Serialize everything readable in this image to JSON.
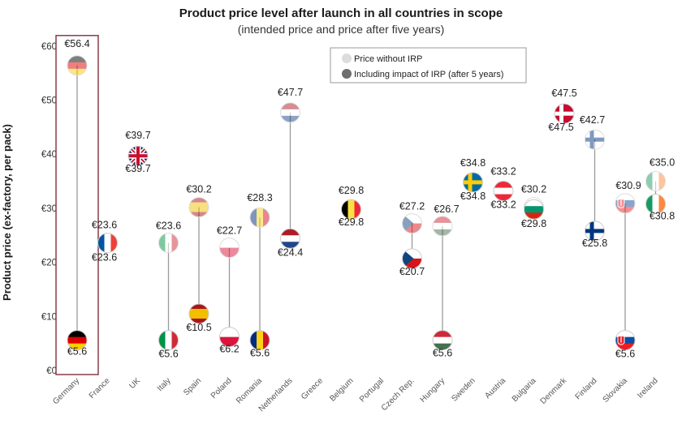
{
  "chart_data": {
    "type": "scatter",
    "title": "Product price level after launch in all countries in scope",
    "subtitle": "(intended price and price after five years)",
    "ylabel": "Product price  (ex-factory, per pack)",
    "ylim": [
      0,
      60
    ],
    "yticks": [
      {
        "value": 0,
        "label": "€0"
      },
      {
        "value": 10,
        "label": "€10"
      },
      {
        "value": 20,
        "label": "€20"
      },
      {
        "value": 30,
        "label": "€30"
      },
      {
        "value": 40,
        "label": "€40"
      },
      {
        "value": 50,
        "label": "€50"
      },
      {
        "value": 60,
        "label": "€60"
      }
    ],
    "legend": {
      "position": "top-center",
      "entries": [
        {
          "label": "Price without IRP",
          "color": "#dcdcdc"
        },
        {
          "label": "Including impact of IRP (after 5 years)",
          "color": "#6e6e6e"
        }
      ]
    },
    "highlight": "Germany",
    "categories": [
      "Germany",
      "France",
      "UK",
      "Italy",
      "Spain",
      "Poland",
      "Romania",
      "Netherlands",
      "Greece",
      "Belgium",
      "Portugal",
      "Czech Rep.",
      "Hungary",
      "Sweden",
      "Austria",
      "Bulgaria",
      "Denmark",
      "Finland",
      "Slovakia",
      "Ireland"
    ],
    "series": [
      {
        "name": "Price without IRP",
        "values": [
          56.4,
          23.6,
          39.7,
          23.6,
          30.2,
          22.7,
          28.3,
          47.7,
          null,
          29.8,
          null,
          27.2,
          26.7,
          34.8,
          33.2,
          30.2,
          47.5,
          42.7,
          30.9,
          35.0
        ],
        "labels": [
          "€56.4",
          "€23.6",
          "€39.7",
          "€23.6",
          "€30.2",
          "€22.7",
          "€28.3",
          "€47.7",
          "",
          "€29.8",
          "",
          "€27.2",
          "€26.7",
          "€34.8",
          "€33.2",
          "€30.2",
          "€47.5",
          "€42.7",
          "€30.9",
          "€35.0"
        ]
      },
      {
        "name": "Including impact of IRP (after 5 years)",
        "values": [
          5.6,
          23.6,
          39.7,
          5.6,
          10.5,
          6.2,
          5.6,
          24.4,
          null,
          29.8,
          null,
          20.7,
          5.6,
          34.8,
          33.2,
          29.8,
          47.5,
          25.8,
          5.6,
          30.8
        ],
        "labels": [
          "€5.6",
          "€23.6",
          "€39.7",
          "€5.6",
          "€10.5",
          "€6.2",
          "€5.6",
          "€24.4",
          "",
          "€29.8",
          "",
          "€20.7",
          "€5.6",
          "€34.8",
          "€33.2",
          "€29.8",
          "€47.5",
          "€25.8",
          "€5.6",
          "€30.8"
        ]
      }
    ]
  }
}
